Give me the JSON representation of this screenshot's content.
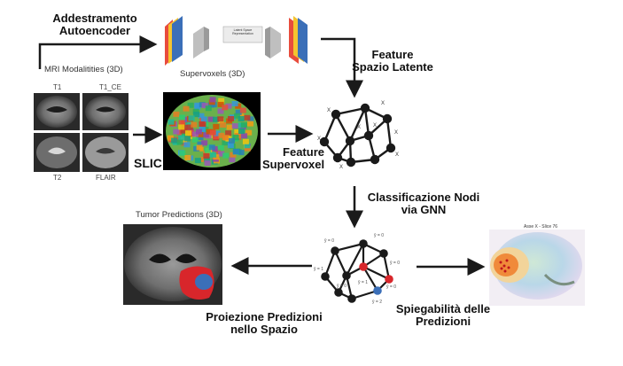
{
  "labels": {
    "autoencoder_training": [
      "Addestramento",
      "Autoencoder"
    ],
    "mri_modalities": "MRI Modalitities (3D)",
    "mod_t1": "T1",
    "mod_t1ce": "T1_CE",
    "mod_t2": "T2",
    "mod_flair": "FLAIR",
    "supervoxels": "Supervoxels (3D)",
    "latent_space_rep": "Latent Space Representation",
    "latent_features": [
      "Feature",
      "Spazio Latente"
    ],
    "slic": "SLIC",
    "supervoxel_features": [
      "Feature",
      "Supervoxel"
    ],
    "node_classification": [
      "Classificazione Nodi",
      "via GNN"
    ],
    "tumor_predictions": "Tumor Predictions (3D)",
    "axis_slice": "Asse X - Slice 76",
    "projection": [
      "Proiezione Predizioni",
      "nello Spazio"
    ],
    "explainability": [
      "Spiegabilità delle",
      "Predizioni"
    ]
  },
  "graph_labels": [
    "X",
    "X",
    "X",
    "X",
    "X",
    "X",
    "X",
    "X"
  ],
  "pred_labels": [
    "ŷ = 0",
    "ŷ = 0",
    "ŷ = 0",
    "ŷ = 1",
    "ŷ = 0",
    "ŷ = 1",
    "ŷ = 0",
    "ŷ = 2"
  ],
  "colors": {
    "arrow": "#1a1a1a",
    "node": "#1a1a1a",
    "tumor_red": "#d8262b",
    "tumor_blue": "#3b6fb8",
    "brain_bg": "#2a2a2a"
  }
}
